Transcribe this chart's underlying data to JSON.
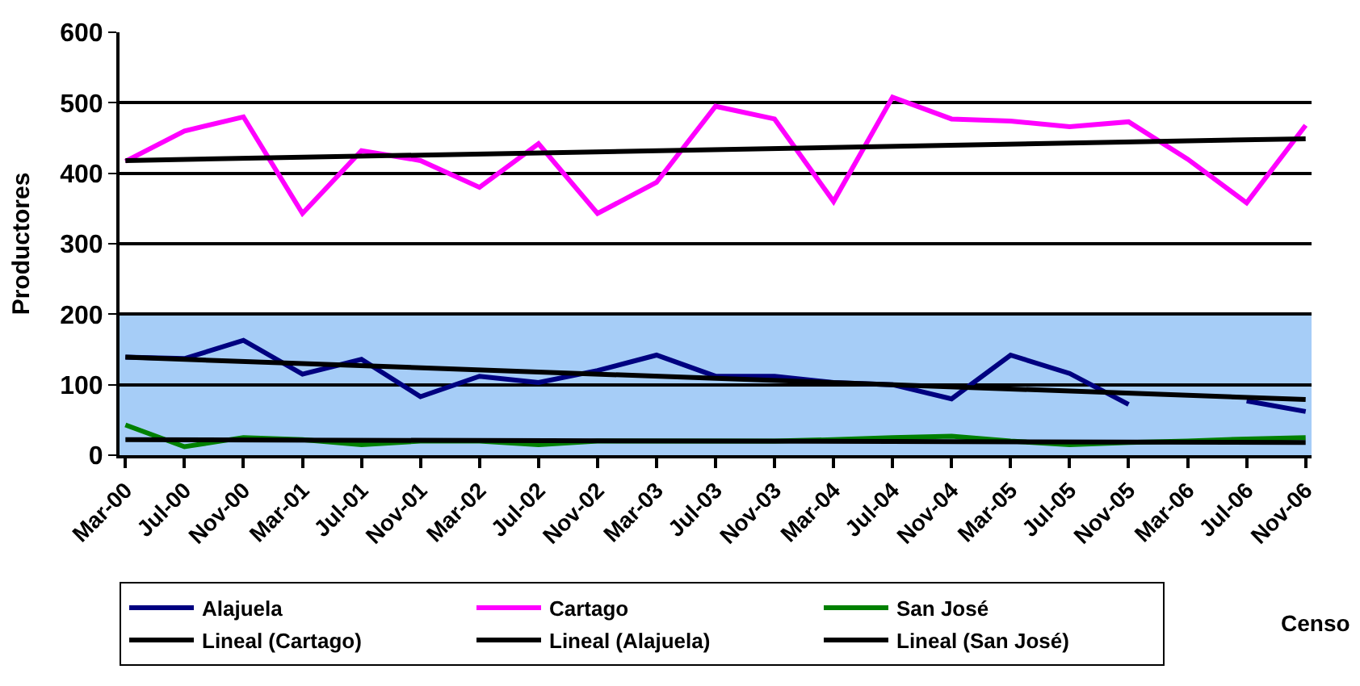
{
  "chart_data": {
    "type": "line",
    "ylabel": "Productores",
    "categories": [
      "Mar-00",
      "Jul-00",
      "Nov-00",
      "Mar-01",
      "Jul-01",
      "Nov-01",
      "Mar-02",
      "Jul-02",
      "Nov-02",
      "Mar-03",
      "Jul-03",
      "Nov-03",
      "Mar-04",
      "Jul-04",
      "Nov-04",
      "Mar-05",
      "Jul-05",
      "Nov-05",
      "Mar-06",
      "Jul-06",
      "Nov-06"
    ],
    "series": [
      {
        "name": "Alajuela",
        "color": "#000080",
        "values": [
          139,
          137,
          163,
          115,
          136,
          83,
          112,
          103,
          120,
          142,
          112,
          112,
          103,
          100,
          80,
          142,
          116,
          72,
          null,
          77,
          62
        ]
      },
      {
        "name": "Cartago",
        "color": "#ff00ff",
        "values": [
          417,
          460,
          480,
          343,
          432,
          418,
          380,
          442,
          343,
          387,
          495,
          477,
          360,
          508,
          477,
          474,
          466,
          473,
          420,
          358,
          468
        ]
      },
      {
        "name": "San José",
        "color": "#008000",
        "values": [
          43,
          12,
          25,
          22,
          15,
          20,
          20,
          15,
          20,
          20,
          20,
          20,
          22,
          25,
          27,
          20,
          15,
          18,
          20,
          23,
          25
        ]
      },
      {
        "name": "Lineal (Cartago)",
        "color": "#000000",
        "x": [
          "Mar-00",
          "Nov-06"
        ],
        "values": [
          418,
          449
        ]
      },
      {
        "name": "Lineal (Alajuela)",
        "color": "#000000",
        "x": [
          "Mar-00",
          "Nov-06"
        ],
        "values": [
          139,
          79
        ]
      },
      {
        "name": "Lineal (San José)",
        "color": "#000000",
        "x": [
          "Mar-00",
          "Nov-06"
        ],
        "values": [
          22,
          18
        ]
      }
    ],
    "ylim": [
      0,
      600
    ],
    "yticks": [
      0,
      100,
      200,
      300,
      400,
      500,
      600
    ],
    "bands": [
      {
        "axis": "y",
        "from": 0,
        "to": 200,
        "color": "#a6cdf7"
      }
    ],
    "annotations": [
      "Censo"
    ],
    "grid": "y",
    "legend": "bottom",
    "marker": "none",
    "line_style": "solid"
  }
}
